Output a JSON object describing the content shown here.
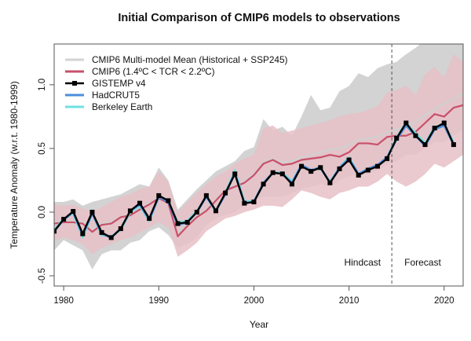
{
  "chart_data": {
    "type": "line",
    "title": "Initial Comparison of CMIP6 models to observations",
    "xlabel": "Year",
    "ylabel": "Temperature Anomaly (w.r.t. 1980-1999)",
    "xlim": [
      1979,
      2022
    ],
    "ylim": [
      -0.58,
      1.32
    ],
    "xticks": [
      1980,
      1990,
      2000,
      2010,
      2020
    ],
    "xtick_labels": [
      "1980",
      "1990",
      "2000",
      "2010",
      "2020"
    ],
    "yticks": [
      -0.5,
      0.0,
      0.5,
      1.0
    ],
    "ytick_labels": [
      "-0.5",
      "0.0",
      "0.5",
      "1.0"
    ],
    "grid": false,
    "legend_position": "top-left",
    "annotations": {
      "divider_year": 2014.5,
      "hindcast_label": "Hindcast",
      "forecast_label": "Forecast"
    },
    "bands": [
      {
        "name": "CMIP6 Multi-model Mean (Historical + SSP245)",
        "color": "#d3d3d3",
        "x": [
          1979,
          1980,
          1981,
          1982,
          1983,
          1984,
          1985,
          1986,
          1987,
          1988,
          1989,
          1990,
          1991,
          1992,
          1993,
          1994,
          1995,
          1996,
          1997,
          1998,
          1999,
          2000,
          2001,
          2002,
          2003,
          2004,
          2005,
          2006,
          2007,
          2008,
          2009,
          2010,
          2011,
          2012,
          2013,
          2014,
          2015,
          2016,
          2017,
          2018,
          2019,
          2020,
          2021,
          2022
        ],
        "upper": [
          0.08,
          0.08,
          0.1,
          0.05,
          0.08,
          0.1,
          0.12,
          0.14,
          0.18,
          0.22,
          0.2,
          0.35,
          0.25,
          0.02,
          0.1,
          0.18,
          0.25,
          0.32,
          0.36,
          0.4,
          0.48,
          0.51,
          0.73,
          0.64,
          0.67,
          0.6,
          0.75,
          0.92,
          0.8,
          0.82,
          0.95,
          0.99,
          1.09,
          1.06,
          1.13,
          1.16,
          1.18,
          1.24,
          1.29,
          1.35,
          1.38,
          1.37,
          1.38,
          1.38
        ],
        "lower": [
          -0.3,
          -0.22,
          -0.26,
          -0.3,
          -0.45,
          -0.33,
          -0.3,
          -0.3,
          -0.24,
          -0.22,
          -0.15,
          -0.12,
          -0.18,
          -0.28,
          -0.25,
          -0.2,
          -0.1,
          -0.05,
          -0.02,
          0.0,
          0.05,
          0.1,
          0.12,
          0.12,
          0.12,
          0.15,
          0.18,
          0.2,
          0.22,
          0.2,
          0.25,
          0.28,
          0.3,
          0.3,
          0.33,
          0.38,
          0.4,
          0.45,
          0.45,
          0.5,
          0.55,
          0.55,
          0.6,
          0.65
        ]
      },
      {
        "name": "CMIP6 (1.4ºC < TCR < 2.2ºC)",
        "color": "#e6c0c7",
        "x": [
          1979,
          1980,
          1981,
          1982,
          1983,
          1984,
          1985,
          1986,
          1987,
          1988,
          1989,
          1990,
          1991,
          1992,
          1993,
          1994,
          1995,
          1996,
          1997,
          1998,
          1999,
          2000,
          2001,
          2002,
          2003,
          2004,
          2005,
          2006,
          2007,
          2008,
          2009,
          2010,
          2011,
          2012,
          2013,
          2014,
          2015,
          2016,
          2017,
          2018,
          2019,
          2020,
          2021,
          2022
        ],
        "upper": [
          0.06,
          0.05,
          0.06,
          0.03,
          0.0,
          0.04,
          0.08,
          0.12,
          0.14,
          0.18,
          0.2,
          0.32,
          0.24,
          -0.01,
          0.08,
          0.15,
          0.22,
          0.28,
          0.32,
          0.38,
          0.42,
          0.45,
          0.66,
          0.68,
          0.62,
          0.64,
          0.66,
          0.68,
          0.7,
          0.72,
          0.75,
          0.77,
          0.78,
          0.8,
          0.83,
          0.94,
          0.96,
          0.99,
          0.92,
          1.08,
          1.14,
          1.06,
          1.24,
          1.18
        ],
        "lower": [
          -0.22,
          -0.2,
          -0.22,
          -0.25,
          -0.33,
          -0.28,
          -0.25,
          -0.22,
          -0.2,
          -0.16,
          -0.12,
          -0.08,
          -0.12,
          -0.35,
          -0.3,
          -0.24,
          -0.15,
          -0.1,
          -0.05,
          -0.03,
          0.0,
          0.02,
          0.05,
          0.05,
          0.04,
          0.1,
          0.17,
          0.15,
          0.12,
          0.1,
          0.15,
          0.17,
          0.2,
          0.2,
          0.24,
          0.3,
          0.24,
          0.2,
          0.24,
          0.3,
          0.38,
          0.35,
          0.4,
          0.45
        ]
      }
    ],
    "series": [
      {
        "name": "CMIP6 Multi-model Mean (Historical + SSP245)",
        "color": "#d0d0d0",
        "x": [
          1979,
          1980,
          1981,
          1982,
          1983,
          1984,
          1985,
          1986,
          1987,
          1988,
          1989,
          1990,
          1991,
          1992,
          1993,
          1994,
          1995,
          1996,
          1997,
          1998,
          1999,
          2000,
          2001,
          2002,
          2003,
          2004,
          2005,
          2006,
          2007,
          2008,
          2009,
          2010,
          2011,
          2012,
          2013,
          2014,
          2015,
          2016,
          2017,
          2018,
          2019,
          2020,
          2021,
          2022
        ],
        "y": [
          -0.08,
          -0.07,
          -0.07,
          -0.08,
          -0.13,
          -0.09,
          -0.08,
          -0.04,
          -0.02,
          0.03,
          0.07,
          0.12,
          0.08,
          -0.16,
          -0.09,
          -0.03,
          0.02,
          0.1,
          0.18,
          0.21,
          0.24,
          0.3,
          0.39,
          0.42,
          0.39,
          0.4,
          0.43,
          0.45,
          0.47,
          0.49,
          0.5,
          0.53,
          0.57,
          0.58,
          0.59,
          0.63,
          0.65,
          0.67,
          0.71,
          0.76,
          0.81,
          0.85,
          0.89,
          0.93
        ]
      },
      {
        "name": "CMIP6 (1.4ºC < TCR < 2.2ºC)",
        "color": "#c8506a",
        "x": [
          1979,
          1980,
          1981,
          1982,
          1983,
          1984,
          1985,
          1986,
          1987,
          1988,
          1989,
          1990,
          1991,
          1992,
          1993,
          1994,
          1995,
          1996,
          1997,
          1998,
          1999,
          2000,
          2001,
          2002,
          2003,
          2004,
          2005,
          2006,
          2007,
          2008,
          2009,
          2010,
          2011,
          2012,
          2013,
          2014,
          2015,
          2016,
          2017,
          2018,
          2019,
          2020,
          2021,
          2022
        ],
        "y": [
          -0.09,
          -0.08,
          -0.08,
          -0.09,
          -0.155,
          -0.1,
          -0.09,
          -0.04,
          -0.025,
          0.02,
          0.06,
          0.11,
          0.07,
          -0.19,
          -0.11,
          -0.04,
          0.01,
          0.09,
          0.17,
          0.2,
          0.23,
          0.29,
          0.38,
          0.41,
          0.37,
          0.38,
          0.41,
          0.42,
          0.43,
          0.45,
          0.435,
          0.47,
          0.54,
          0.54,
          0.53,
          0.59,
          0.6,
          0.6,
          0.63,
          0.7,
          0.77,
          0.75,
          0.82,
          0.84
        ]
      },
      {
        "name": "Berkeley Earth",
        "color": "#6fe0e0",
        "x": [
          1979,
          1980,
          1981,
          1982,
          1983,
          1984,
          1985,
          1986,
          1987,
          1988,
          1989,
          1990,
          1991,
          1992,
          1993,
          1994,
          1995,
          1996,
          1997,
          1998,
          1999,
          2000,
          2001,
          2002,
          2003,
          2004,
          2005,
          2006,
          2007,
          2008,
          2009,
          2010,
          2011,
          2012,
          2013,
          2014,
          2015,
          2016,
          2017,
          2018,
          2019,
          2020,
          2021
        ],
        "y": [
          -0.14,
          -0.05,
          -0.01,
          -0.2,
          -0.01,
          -0.18,
          -0.19,
          -0.14,
          0.0,
          0.05,
          -0.07,
          0.12,
          0.08,
          -0.08,
          -0.07,
          0.01,
          0.12,
          0.0,
          0.15,
          0.33,
          0.08,
          0.09,
          0.22,
          0.31,
          0.31,
          0.24,
          0.37,
          0.33,
          0.34,
          0.24,
          0.35,
          0.43,
          0.3,
          0.33,
          0.37,
          0.43,
          0.59,
          0.7,
          0.62,
          0.54,
          0.67,
          0.69,
          0.55
        ]
      },
      {
        "name": "HadCRUT5",
        "color": "#4a8ede",
        "x": [
          1979,
          1980,
          1981,
          1982,
          1983,
          1984,
          1985,
          1986,
          1987,
          1988,
          1989,
          1990,
          1991,
          1992,
          1993,
          1994,
          1995,
          1996,
          1997,
          1998,
          1999,
          2000,
          2001,
          2002,
          2003,
          2004,
          2005,
          2006,
          2007,
          2008,
          2009,
          2010,
          2011,
          2012,
          2013,
          2014,
          2015,
          2016,
          2017,
          2018,
          2019,
          2020,
          2021
        ],
        "y": [
          -0.15,
          -0.06,
          0.0,
          -0.18,
          -0.01,
          -0.17,
          -0.2,
          -0.13,
          0.01,
          0.06,
          -0.06,
          0.12,
          0.08,
          -0.1,
          -0.08,
          0.0,
          0.12,
          0.01,
          0.14,
          0.31,
          0.07,
          0.08,
          0.23,
          0.31,
          0.3,
          0.23,
          0.37,
          0.33,
          0.35,
          0.23,
          0.35,
          0.42,
          0.3,
          0.34,
          0.37,
          0.43,
          0.57,
          0.68,
          0.6,
          0.52,
          0.65,
          0.68,
          0.53
        ]
      },
      {
        "name": "GISTEMP v4",
        "color": "#000000",
        "marker": "square",
        "x": [
          1979,
          1980,
          1981,
          1982,
          1983,
          1984,
          1985,
          1986,
          1987,
          1988,
          1989,
          1990,
          1991,
          1992,
          1993,
          1994,
          1995,
          1996,
          1997,
          1998,
          1999,
          2000,
          2001,
          2002,
          2003,
          2004,
          2005,
          2006,
          2007,
          2008,
          2009,
          2010,
          2011,
          2012,
          2013,
          2014,
          2015,
          2016,
          2017,
          2018,
          2019,
          2020,
          2021
        ],
        "y": [
          -0.15,
          -0.056,
          0.006,
          -0.17,
          0.0,
          -0.16,
          -0.2,
          -0.13,
          0.01,
          0.07,
          -0.05,
          0.13,
          0.09,
          -0.09,
          -0.08,
          0.0,
          0.13,
          0.01,
          0.15,
          0.3,
          0.07,
          0.08,
          0.22,
          0.31,
          0.3,
          0.22,
          0.36,
          0.32,
          0.35,
          0.23,
          0.34,
          0.41,
          0.29,
          0.33,
          0.36,
          0.42,
          0.58,
          0.7,
          0.6,
          0.53,
          0.66,
          0.7,
          0.53
        ]
      }
    ],
    "legend": [
      {
        "label": "CMIP6 Multi-model Mean (Historical + SSP245)",
        "color": "#d3d3d3",
        "marker": false
      },
      {
        "label": "CMIP6 (1.4ºC < TCR < 2.2ºC)",
        "color": "#c8506a",
        "marker": false
      },
      {
        "label": "GISTEMP v4",
        "color": "#000000",
        "marker": true
      },
      {
        "label": "HadCRUT5",
        "color": "#4a8ede",
        "marker": false
      },
      {
        "label": "Berkeley Earth",
        "color": "#6fe0e0",
        "marker": false
      }
    ]
  }
}
